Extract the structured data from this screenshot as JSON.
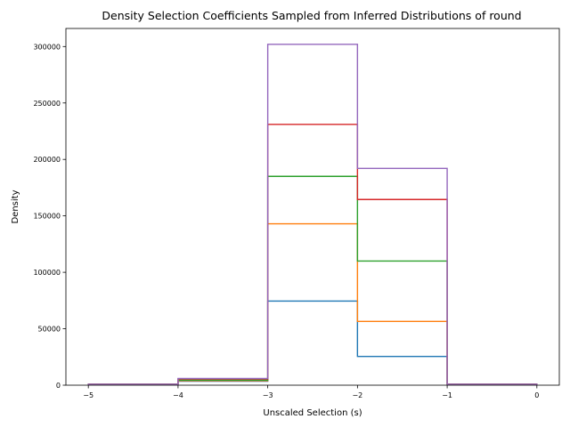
{
  "chart_data": {
    "type": "step",
    "title": "Density Selection Coefficients Sampled from Inferred Distributions of round",
    "xlabel": "Unscaled Selection (s)",
    "ylabel": "Density",
    "xlim": [
      -5.25,
      0.25
    ],
    "ylim": [
      0,
      316000
    ],
    "x_ticks": [
      -5,
      -4,
      -3,
      -2,
      -1,
      0
    ],
    "x_tick_labels": [
      "−5",
      "−4",
      "−3",
      "−2",
      "−1",
      "0"
    ],
    "y_ticks": [
      0,
      50000,
      100000,
      150000,
      200000,
      250000,
      300000
    ],
    "y_tick_labels": [
      "0",
      "50000",
      "100000",
      "150000",
      "200000",
      "250000",
      "300000"
    ],
    "bin_edges": [
      -5,
      -4,
      -3,
      -2,
      -1,
      0
    ],
    "grid": false,
    "series": [
      {
        "color": "#1f77b4",
        "values": [
          800,
          3500,
          74500,
          25500,
          800
        ]
      },
      {
        "color": "#ff7f0e",
        "values": [
          800,
          4000,
          143000,
          56500,
          800
        ]
      },
      {
        "color": "#2ca02c",
        "values": [
          800,
          4500,
          185000,
          110000,
          800
        ]
      },
      {
        "color": "#d62728",
        "values": [
          800,
          5500,
          231000,
          164500,
          800
        ]
      },
      {
        "color": "#9467bd",
        "values": [
          800,
          6000,
          302000,
          192000,
          800
        ]
      }
    ]
  }
}
